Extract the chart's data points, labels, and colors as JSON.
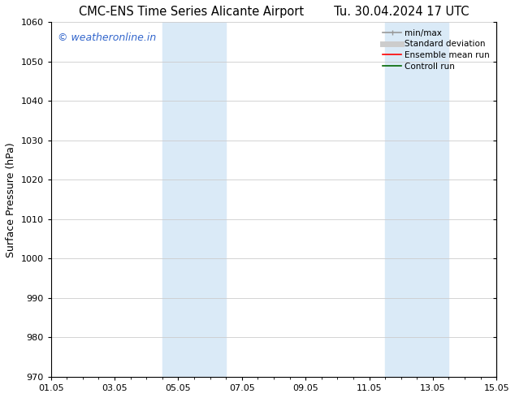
{
  "title_left": "CMC-ENS Time Series Alicante Airport",
  "title_right": "Tu. 30.04.2024 17 UTC",
  "ylabel": "Surface Pressure (hPa)",
  "ylim": [
    970,
    1060
  ],
  "yticks": [
    970,
    980,
    990,
    1000,
    1010,
    1020,
    1030,
    1040,
    1050,
    1060
  ],
  "xlim_start": 0,
  "xlim_end": 14,
  "xtick_labels": [
    "01.05",
    "03.05",
    "05.05",
    "07.05",
    "09.05",
    "11.05",
    "13.05",
    "15.05"
  ],
  "xtick_positions": [
    0,
    2,
    4,
    6,
    8,
    10,
    12,
    14
  ],
  "shaded_bands": [
    {
      "x_start": 3.5,
      "x_end": 5.5
    },
    {
      "x_start": 10.5,
      "x_end": 12.5
    }
  ],
  "shaded_color": "#daeaf7",
  "watermark_text": "© weatheronline.in",
  "watermark_color": "#3366cc",
  "legend_items": [
    {
      "label": "min/max",
      "color": "#999999",
      "lw": 1.2
    },
    {
      "label": "Standard deviation",
      "color": "#cccccc",
      "lw": 5
    },
    {
      "label": "Ensemble mean run",
      "color": "#ff0000",
      "lw": 1.2
    },
    {
      "label": "Controll run",
      "color": "#006600",
      "lw": 1.2
    }
  ],
  "bg_color": "#ffffff",
  "grid_color": "#cccccc",
  "title_fontsize": 10.5,
  "ylabel_fontsize": 9,
  "tick_fontsize": 8,
  "legend_fontsize": 7.5,
  "watermark_fontsize": 9
}
